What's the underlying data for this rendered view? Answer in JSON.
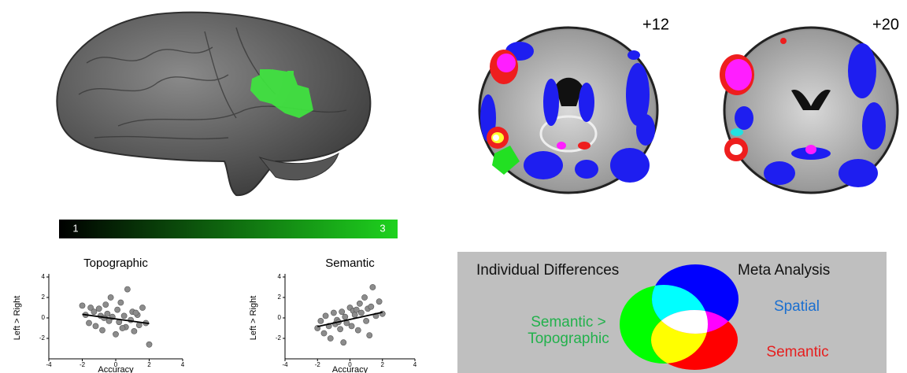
{
  "brain_views": {
    "slices": [
      "+12",
      "+20"
    ]
  },
  "colorbar": {
    "min": 1,
    "max": 3
  },
  "chart_data": [
    {
      "type": "scatter",
      "title": "Topographic",
      "x_label": "Accuracy",
      "y_label": "Left > Right",
      "xlim": [
        -4,
        4
      ],
      "xticks": [
        -4,
        -2,
        0,
        2,
        4
      ],
      "ylim": [
        -4,
        4
      ],
      "yticks": [
        -2,
        0,
        2,
        4
      ],
      "color": "#8c8c8c",
      "x": [
        -2,
        -1.8,
        -1.6,
        -1.5,
        -1.3,
        -1.2,
        -1,
        -0.9,
        -0.8,
        -0.6,
        -0.5,
        -0.4,
        -0.3,
        -0.2,
        0,
        0.1,
        0.2,
        0.3,
        0.5,
        0.6,
        0.7,
        0.9,
        1,
        1.1,
        1.3,
        1.4,
        1.6,
        1.8,
        2,
        -0.7,
        0.4,
        1.2
      ],
      "y": [
        1.2,
        0.3,
        -0.5,
        1,
        0.6,
        -0.8,
        0.9,
        0.2,
        -1.2,
        1.3,
        0.4,
        -0.3,
        2,
        0.1,
        -1.6,
        0.8,
        -0.4,
        1.5,
        0.2,
        -0.9,
        2.8,
        -0.2,
        0.6,
        -1.3,
        0.3,
        -0.7,
        1,
        -0.5,
        -2.6,
        0,
        -1,
        0.5
      ],
      "fit": {
        "x": [
          -2,
          2
        ],
        "y": [
          0.35,
          -0.55
        ]
      }
    },
    {
      "type": "scatter",
      "title": "Semantic",
      "x_label": "Accuracy",
      "y_label": "Left > Right",
      "xlim": [
        -4,
        4
      ],
      "xticks": [
        -4,
        -2,
        0,
        2,
        4
      ],
      "ylim": [
        -4,
        4
      ],
      "yticks": [
        -2,
        0,
        2,
        4
      ],
      "color": "#8c8c8c",
      "x": [
        -2,
        -1.8,
        -1.6,
        -1.5,
        -1.3,
        -1.2,
        -1,
        -0.9,
        -0.8,
        -0.6,
        -0.5,
        -0.4,
        -0.3,
        -0.2,
        0,
        0.1,
        0.2,
        0.3,
        0.5,
        0.6,
        0.7,
        0.9,
        1,
        1.1,
        1.3,
        1.4,
        1.6,
        1.8,
        2,
        -0.7,
        0.4,
        1.2
      ],
      "y": [
        -1,
        -0.3,
        -1.5,
        0.2,
        -0.8,
        -2,
        0.5,
        -0.6,
        -0.2,
        -1.1,
        0.6,
        -2.4,
        0.1,
        -0.5,
        1,
        -0.8,
        0.7,
        0.3,
        -1.2,
        1.4,
        0.5,
        2,
        -0.3,
        0.9,
        1.1,
        3,
        0.2,
        1.6,
        0.4,
        -0.4,
        0.8,
        -1.7
      ],
      "fit": {
        "x": [
          -2,
          2
        ],
        "y": [
          -0.85,
          0.55
        ]
      }
    }
  ],
  "venn": {
    "left_heading": "Individual Differences",
    "right_heading": "Meta Analysis",
    "left_label": [
      "Semantic >",
      "Topographic"
    ],
    "spatial_label": "Spatial",
    "semantic_label": "Semantic"
  }
}
